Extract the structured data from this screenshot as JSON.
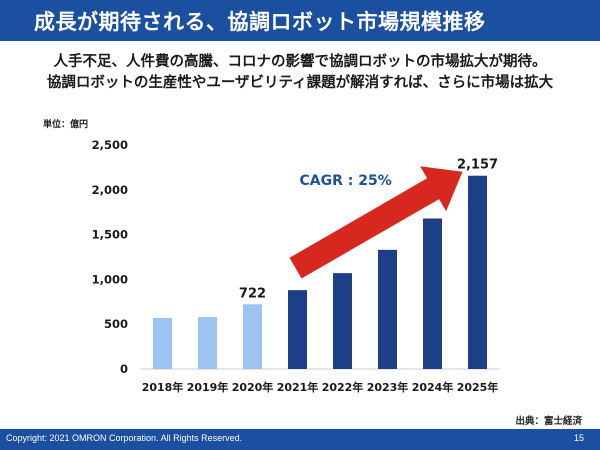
{
  "slide": {
    "title": "成長が期待される、協調ロボット市場規模推移",
    "subtitle_line1": "人手不足、人件費の高騰、コロナの影響で協調ロボットの市場拡大が期待。",
    "subtitle_line2": "協調ロボットの生産性やユーザビリティ課題が解消すれば、さらに市場は拡大",
    "unit_label": "単位：億円",
    "source": "出典：富士経済",
    "copyright": "Copyright: 2021 OMRON Corporation. All Rights Reserved.",
    "page_number": "15"
  },
  "colors": {
    "brand": "#1b4fa0",
    "bar_actual": "#9cc3f2",
    "bar_forecast": "#1d3f87",
    "arrow": "#d6281e",
    "cagr_text": "#1d4f9c"
  },
  "chart_data": {
    "type": "bar",
    "title": "",
    "xlabel": "",
    "ylabel": "",
    "unit": "億円",
    "ylim": [
      0,
      2500
    ],
    "yticks": [
      0,
      500,
      1000,
      1500,
      2000,
      2500
    ],
    "ytick_labels": [
      "0",
      "500",
      "1,000",
      "1,500",
      "2,000",
      "2,500"
    ],
    "grid": false,
    "categories": [
      "2018年",
      "2019年",
      "2020年",
      "2021年",
      "2022年",
      "2023年",
      "2024年",
      "2025年"
    ],
    "values": [
      570,
      580,
      722,
      880,
      1070,
      1330,
      1680,
      2157
    ],
    "bar_kind": [
      "actual",
      "actual",
      "actual",
      "forecast",
      "forecast",
      "forecast",
      "forecast",
      "forecast"
    ],
    "data_labels": [
      {
        "index": 2,
        "text": "722"
      },
      {
        "index": 7,
        "text": "2,157"
      }
    ],
    "annotation": {
      "text": "CAGR : 25%",
      "arrow_from_index": 3,
      "arrow_to_index": 6
    }
  }
}
